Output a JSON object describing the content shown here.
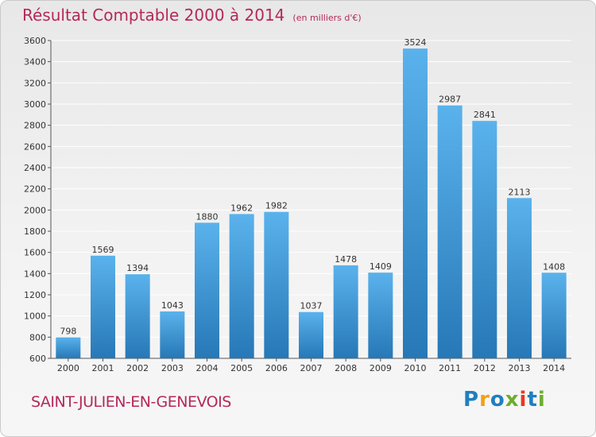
{
  "header": {
    "title": "Résultat Comptable 2000 à 2014",
    "unit": "(en milliers d'€)"
  },
  "footer": {
    "city": "SAINT-JULIEN-EN-GENEVOIS",
    "logo": "Proxiti"
  },
  "colors": {
    "title": "#b5285a",
    "bar_top": "#5ab2ec",
    "bar_bottom": "#2678b6",
    "grid": "#ffffff",
    "logo_letters": [
      "#1f7fc1",
      "#f0a119",
      "#1f7fc1",
      "#6cae2c",
      "#e8381f",
      "#1f7fc1",
      "#6cae2c"
    ]
  },
  "chart_data": {
    "type": "bar",
    "title": "Résultat Comptable 2000 à 2014",
    "subtitle": "(en milliers d'€)",
    "xlabel": "",
    "ylabel": "",
    "categories": [
      "2000",
      "2001",
      "2002",
      "2003",
      "2004",
      "2005",
      "2006",
      "2007",
      "2008",
      "2009",
      "2010",
      "2011",
      "2012",
      "2013",
      "2014"
    ],
    "values": [
      798,
      1569,
      1394,
      1043,
      1880,
      1962,
      1982,
      1037,
      1478,
      1409,
      3524,
      2987,
      2841,
      2113,
      1408
    ],
    "ylim": [
      600,
      3600
    ],
    "yticks": [
      600,
      800,
      1000,
      1200,
      1400,
      1600,
      1800,
      2000,
      2200,
      2400,
      2600,
      2800,
      3000,
      3200,
      3400,
      3600
    ],
    "grid": true,
    "data_labels": true
  }
}
